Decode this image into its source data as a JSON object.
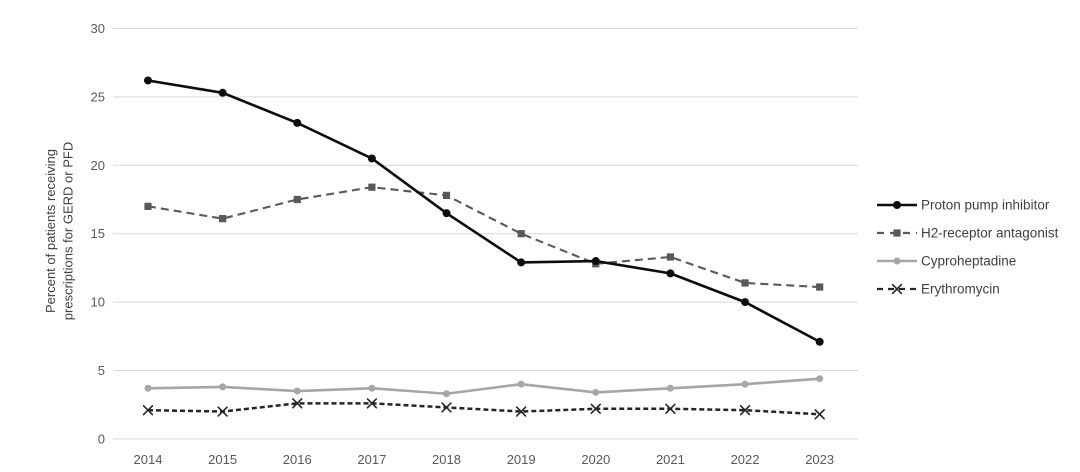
{
  "chart_data": {
    "type": "line",
    "title": "",
    "xlabel": "",
    "ylabel": "Percent of patients receiving prescriptions for GERD or PFD",
    "ylabel_lines": [
      "Percent of patients receiving",
      "prescriptions for GERD or PFD"
    ],
    "categories": [
      "2014",
      "2015",
      "2016",
      "2017",
      "2018",
      "2019",
      "2020",
      "2021",
      "2022",
      "2023"
    ],
    "yticks": [
      0,
      5,
      10,
      15,
      20,
      25,
      30
    ],
    "ylim": [
      0,
      30
    ],
    "grid": true,
    "legend_position": "right",
    "series": [
      {
        "name": "Proton pump inhibitor",
        "values": [
          26.2,
          25.3,
          23.1,
          20.5,
          16.5,
          12.9,
          13.0,
          12.1,
          10.0,
          7.1
        ],
        "color": "#0d0d0d",
        "line_style": "solid",
        "dash_pattern": "",
        "marker": "circle"
      },
      {
        "name": "H2-receptor antagonist",
        "values": [
          17.0,
          16.1,
          17.5,
          18.4,
          17.8,
          15.0,
          12.8,
          13.3,
          11.4,
          11.1
        ],
        "color": "#595959",
        "line_style": "dashed",
        "dash_pattern": "8 5",
        "marker": "square"
      },
      {
        "name": "Cyproheptadine",
        "values": [
          3.7,
          3.8,
          3.5,
          3.7,
          3.3,
          4.0,
          3.4,
          3.7,
          4.0,
          4.4
        ],
        "color": "#a6a6a6",
        "line_style": "solid",
        "dash_pattern": "",
        "marker": "circle"
      },
      {
        "name": "Erythromycin",
        "values": [
          2.1,
          2.0,
          2.6,
          2.6,
          2.3,
          2.0,
          2.2,
          2.2,
          2.1,
          1.8
        ],
        "color": "#262626",
        "line_style": "dashed",
        "dash_pattern": "5 3",
        "marker": "x"
      }
    ]
  },
  "colors": {
    "background": "#ffffff",
    "grid": "#d9d9d9",
    "tick_label": "#595959",
    "axis_title": "#404040",
    "legend_text": "#3f3f3f"
  }
}
